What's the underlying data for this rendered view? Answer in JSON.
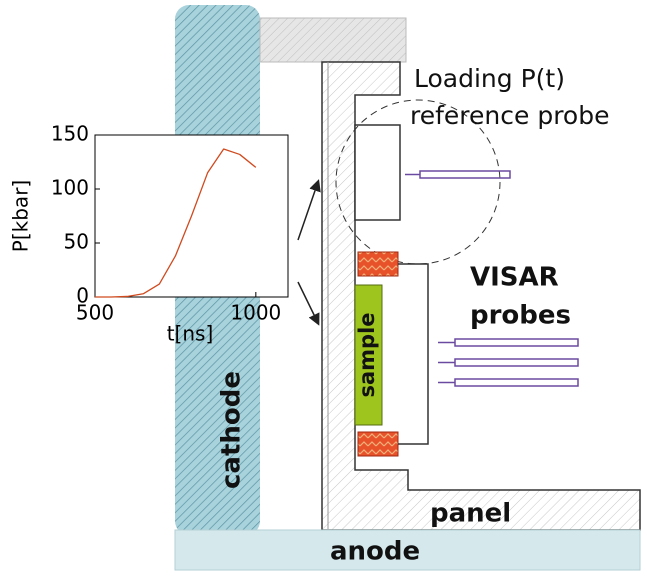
{
  "labels": {
    "loading": "Loading P(t)",
    "reference": "reference probe",
    "visar": "VISAR",
    "probes": "probes",
    "sample": "sample",
    "cathode": "cathode",
    "panel": "panel",
    "anode": "anode"
  },
  "chart_data": {
    "type": "line",
    "x_label": "t[ns]",
    "y_label": "P[kbar]",
    "x": [
      500,
      550,
      600,
      650,
      700,
      750,
      800,
      850,
      900,
      950,
      1000
    ],
    "series": [
      {
        "name": "P(t)",
        "color": "#d04a1e",
        "values": [
          0,
          0,
          0.5,
          3,
          12,
          38,
          75,
          115,
          137,
          132,
          120
        ]
      }
    ],
    "xlim": [
      500,
      1100
    ],
    "ylim": [
      0,
      150
    ],
    "xticks": [
      500,
      1000
    ],
    "yticks": [
      0,
      50,
      100,
      150
    ]
  }
}
